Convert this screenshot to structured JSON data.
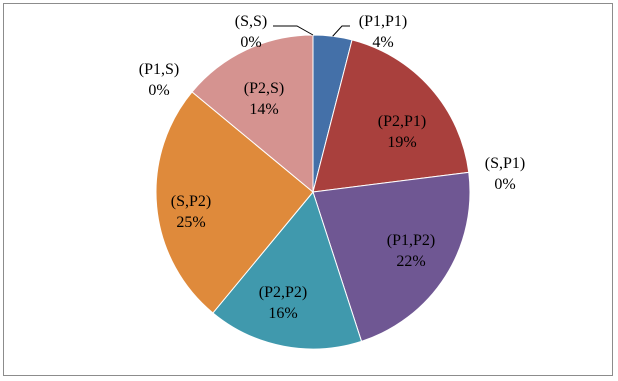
{
  "chart_data": {
    "type": "pie",
    "title": "",
    "start_angle_deg": 0,
    "direction": "clockwise",
    "series": [
      {
        "slices": [
          {
            "label": "(P1,P1)",
            "percent_label": "4%",
            "value": 4,
            "color": "#4470a8"
          },
          {
            "label": "(P2,P1)",
            "percent_label": "19%",
            "value": 19,
            "color": "#a9403d"
          },
          {
            "label": "(S,P1)",
            "percent_label": "0%",
            "value": 0,
            "color": "#86a845"
          },
          {
            "label": "(P1,P2)",
            "percent_label": "22%",
            "value": 22,
            "color": "#6f5793"
          },
          {
            "label": "(P2,P2)",
            "percent_label": "16%",
            "value": 16,
            "color": "#4099ad"
          },
          {
            "label": "(S,P2)",
            "percent_label": "25%",
            "value": 25,
            "color": "#df8a3b"
          },
          {
            "label": "(P1,S)",
            "percent_label": "0%",
            "value": 0,
            "color": "#7f95c2"
          },
          {
            "label": "(P2,S)",
            "percent_label": "14%",
            "value": 14,
            "color": "#d59390"
          },
          {
            "label": "(S,S)",
            "percent_label": "0%",
            "value": 0,
            "color": "#b8cc8a"
          }
        ]
      }
    ],
    "legend": "none",
    "data_labels": "category name and percentage"
  }
}
